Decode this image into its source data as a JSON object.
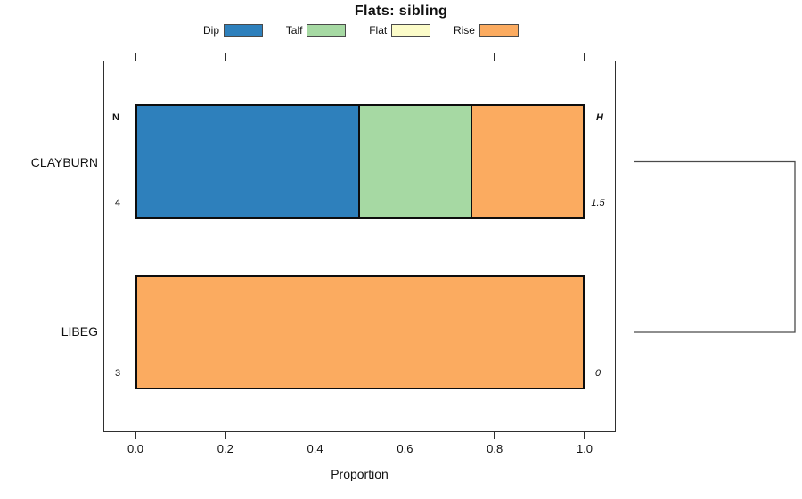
{
  "title": "Flats: sibling",
  "legend": {
    "position": "top",
    "items": [
      {
        "label": "Dip",
        "color": "#2E80BC"
      },
      {
        "label": "Talf",
        "color": "#A6D9A3"
      },
      {
        "label": "Flat",
        "color": "#FCFCC9"
      },
      {
        "label": "Rise",
        "color": "#FBAB60"
      }
    ]
  },
  "chart_data": {
    "type": "bar",
    "subtype": "horizontal-stacked-proportion",
    "title": "Flats: sibling",
    "xlabel": "Proportion",
    "ylabel": "",
    "xlim": [
      0,
      1
    ],
    "grid": false,
    "legend_position": "top",
    "x_ticks": {
      "values": [
        0,
        0.2,
        0.4,
        0.6,
        0.8,
        1.0
      ],
      "labels": [
        "0.0",
        "0.2",
        "0.4",
        "0.6",
        "0.8",
        "1.0"
      ]
    },
    "categories": [
      "CLAYBURN",
      "LIBEG"
    ],
    "series": [
      {
        "name": "Dip",
        "color": "#2E80BC",
        "values": [
          0.5,
          0
        ]
      },
      {
        "name": "Talf",
        "color": "#A6D9A3",
        "values": [
          0.25,
          0
        ]
      },
      {
        "name": "Flat",
        "color": "#FCFCC9",
        "values": [
          0,
          0
        ]
      },
      {
        "name": "Rise",
        "color": "#FBAB60",
        "values": [
          0.25,
          1.0
        ]
      }
    ],
    "annotations": {
      "left_header": "N",
      "right_header": "H",
      "n_values": [
        "4",
        "3"
      ],
      "h_values": [
        "1.5",
        "0"
      ]
    },
    "dendrogram": {
      "present": true,
      "side": "right",
      "description": "bracket joining CLAYBURN and LIBEG at full merge height"
    }
  }
}
